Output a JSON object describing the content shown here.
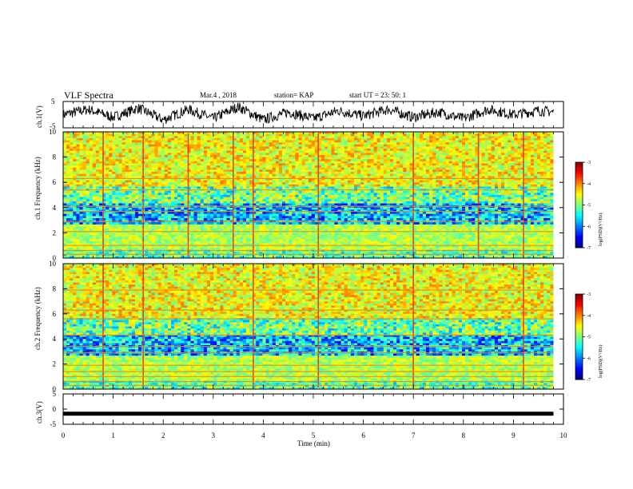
{
  "header": {
    "title": "VLF Spectra",
    "date": "Mar.4 , 2018",
    "station": "station= KAP",
    "start": "start UT = 23: 50: 1"
  },
  "chart_data": [
    {
      "type": "line",
      "panel": "ch1-waveform",
      "ylabel": "ch.1(V)",
      "ylim": [
        -5,
        5
      ],
      "yticks": [
        "5",
        "-5"
      ],
      "xlim": [
        0,
        10
      ],
      "x_unit": "min",
      "trace_color": "#000000",
      "description_series": {
        "x": [
          0,
          0.5,
          1,
          1.5,
          2,
          2.5,
          3,
          3.5,
          4,
          4.5,
          5,
          5.5,
          6,
          6.5,
          7,
          7.5,
          8,
          8.5,
          9,
          9.5,
          9.8
        ],
        "y": [
          0,
          2,
          -1,
          2.5,
          -2,
          2,
          -1.5,
          3,
          -2,
          1,
          -1.5,
          1.5,
          -0.5,
          2,
          -1,
          1,
          -1.5,
          2,
          0,
          1.5,
          1
        ]
      }
    },
    {
      "type": "heatmap",
      "panel": "ch1-spectrogram",
      "ylabel": "ch.1 Frequency (kHz)",
      "ylim": [
        0,
        10
      ],
      "yticks": [
        "0",
        "2",
        "4",
        "6",
        "8",
        "10"
      ],
      "xlim": [
        0,
        9.8
      ],
      "colorbar": {
        "label": "log(PSD)(V²/Hz)",
        "range": [
          -7,
          -3
        ],
        "ticks": [
          "-3",
          "-4",
          "-5",
          "-6",
          "-7"
        ]
      },
      "horizontal_lines_khz": [
        0.3,
        0.6,
        1.0,
        2.1,
        2.9,
        3.7,
        4.1,
        5.4,
        6.3
      ],
      "vertical_bursts_min": [
        0.8,
        1.6,
        2.5,
        3.4,
        3.8,
        5.1,
        7.0,
        8.3,
        9.2
      ]
    },
    {
      "type": "heatmap",
      "panel": "ch2-spectrogram",
      "ylabel": "ch.2 Frequency (kHz)",
      "ylim": [
        0,
        10
      ],
      "yticks": [
        "0",
        "2",
        "4",
        "6",
        "8",
        "10"
      ],
      "xlim": [
        0,
        9.8
      ],
      "colorbar": {
        "label": "log(PSD)(V²/Hz)",
        "range": [
          -7,
          -3
        ],
        "ticks": [
          "-3",
          "-4",
          "-5",
          "-6",
          "-7"
        ]
      },
      "horizontal_lines_khz": [
        0.3,
        0.6,
        1.0,
        1.4,
        1.9,
        2.9,
        3.4,
        4.3,
        5.6,
        6.3,
        7.9
      ],
      "vertical_bursts_min": [
        0.8,
        1.6,
        3.8,
        5.1,
        7.0,
        9.2
      ]
    },
    {
      "type": "line",
      "panel": "ch3-waveform",
      "ylabel": "ch.3(V)",
      "ylim": [
        -5,
        5
      ],
      "yticks": [
        "5",
        "0",
        "-5"
      ],
      "xlim": [
        0,
        10
      ],
      "xlabel": "Time (min)",
      "xticks": [
        "0",
        "1",
        "2",
        "3",
        "4",
        "5",
        "6",
        "7",
        "8",
        "9",
        "10"
      ],
      "trace_color": "#000000",
      "series": [
        {
          "x": [
            0,
            9.8
          ],
          "y": [
            -1.5,
            -1.5
          ]
        }
      ]
    }
  ]
}
